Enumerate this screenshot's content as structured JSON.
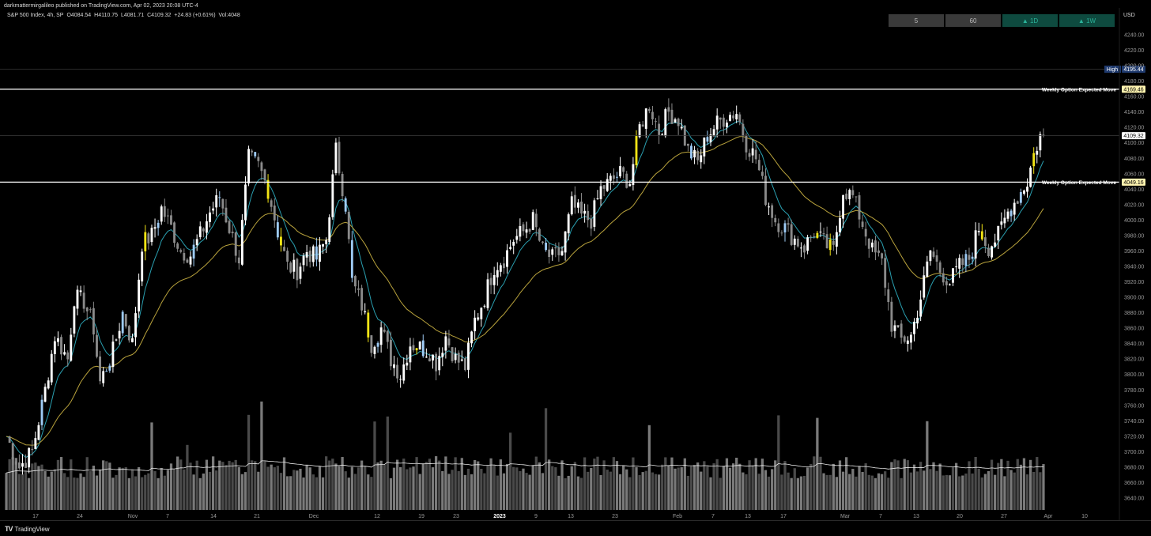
{
  "header": {
    "publish_line": "darkmattermirgalileo published on TradingView.com, Apr 02, 2023 20:08 UTC-4",
    "symbol": "S&P 500 Index, 4h, SP",
    "open": "O4084.54",
    "high": "H4110.75",
    "low": "L4081.71",
    "close": "C4109.32",
    "change": "+24.83 (+0.61%)",
    "volume": "Vol:4048"
  },
  "timeframes": [
    {
      "label": "5",
      "up": false
    },
    {
      "label": "60",
      "up": false
    },
    {
      "label": "▲ 1D",
      "up": true
    },
    {
      "label": "▲ 1W",
      "up": true
    }
  ],
  "axis": {
    "currency": "USD"
  },
  "brand": "TradingView",
  "colors": {
    "background": "#000000",
    "candle_up": "#ffffff",
    "candle_down": "#8a8a8a",
    "candle_accent_blue": "#9ecbf5",
    "candle_accent_yellow": "#f2e415",
    "ema_short": "#2a9fb0",
    "ema_long": "#b8a23c",
    "volume_ma": "#e8e8e8"
  },
  "chart_data": {
    "type": "candlestick",
    "y_axis_ticks": [
      3640,
      3660,
      3680,
      3700,
      3720,
      3740,
      3760,
      3780,
      3800,
      3820,
      3840,
      3860,
      3880,
      3900,
      3920,
      3940,
      3960,
      3980,
      4000,
      4020,
      4040,
      4060,
      4080,
      4100,
      4120,
      4140,
      4160,
      4180,
      4200,
      4220,
      4240
    ],
    "ylim": [
      3630,
      4250
    ],
    "x_tick_labels": [
      "17",
      "24",
      "Nov",
      "7",
      "14",
      "21",
      "Dec",
      "12",
      "19",
      "23",
      "2023",
      "9",
      "13",
      "23",
      "Feb",
      "7",
      "13",
      "17",
      "Mar",
      "7",
      "13",
      "20",
      "27",
      "Apr",
      "10"
    ],
    "horizontal_levels": [
      {
        "name": "High",
        "value": 4195.44,
        "label": "4195.44",
        "line": false
      },
      {
        "name": "Weekly Option Expected Move",
        "value": 4169.46,
        "label": "4169.46",
        "line": true
      },
      {
        "name": "",
        "value": 4109.32,
        "label": "4109.32",
        "line": false
      },
      {
        "name": "Weekly Option Expected Move",
        "value": 4049.16,
        "label": "4049.16",
        "line": true
      }
    ],
    "close_path": [
      [
        0,
        3720
      ],
      [
        4,
        3680
      ],
      [
        8,
        3700
      ],
      [
        12,
        3780
      ],
      [
        15,
        3850
      ],
      [
        19,
        3820
      ],
      [
        21,
        3900
      ],
      [
        24,
        3895
      ],
      [
        27,
        3860
      ],
      [
        29,
        3790
      ],
      [
        33,
        3830
      ],
      [
        36,
        3880
      ],
      [
        39,
        3840
      ],
      [
        42,
        3970
      ],
      [
        45,
        3980
      ],
      [
        48,
        4015
      ],
      [
        51,
        3990
      ],
      [
        54,
        3960
      ],
      [
        57,
        3955
      ],
      [
        60,
        3980
      ],
      [
        63,
        4010
      ],
      [
        66,
        4030
      ],
      [
        69,
        3990
      ],
      [
        72,
        3950
      ],
      [
        75,
        4080
      ],
      [
        78,
        4070
      ],
      [
        81,
        4040
      ],
      [
        84,
        3985
      ],
      [
        87,
        3940
      ],
      [
        90,
        3935
      ],
      [
        93,
        3960
      ],
      [
        96,
        3950
      ],
      [
        99,
        3975
      ],
      [
        102,
        4090
      ],
      [
        105,
        4020
      ],
      [
        107,
        3920
      ],
      [
        110,
        3890
      ],
      [
        113,
        3840
      ],
      [
        116,
        3860
      ],
      [
        119,
        3820
      ],
      [
        122,
        3800
      ],
      [
        125,
        3840
      ],
      [
        128,
        3835
      ],
      [
        131,
        3830
      ],
      [
        133,
        3815
      ],
      [
        136,
        3850
      ],
      [
        139,
        3820
      ],
      [
        142,
        3810
      ],
      [
        145,
        3870
      ],
      [
        148,
        3900
      ],
      [
        151,
        3940
      ],
      [
        154,
        3950
      ],
      [
        157,
        3975
      ],
      [
        160,
        3985
      ],
      [
        163,
        4000
      ],
      [
        166,
        3960
      ],
      [
        169,
        3950
      ],
      [
        172,
        3960
      ],
      [
        175,
        4020
      ],
      [
        178,
        4005
      ],
      [
        181,
        4000
      ],
      [
        184,
        4040
      ],
      [
        187,
        4050
      ],
      [
        190,
        4060
      ],
      [
        193,
        4050
      ],
      [
        196,
        4120
      ],
      [
        199,
        4150
      ],
      [
        202,
        4115
      ],
      [
        205,
        4140
      ],
      [
        208,
        4130
      ],
      [
        211,
        4090
      ],
      [
        214,
        4075
      ],
      [
        217,
        4110
      ],
      [
        220,
        4125
      ],
      [
        223,
        4135
      ],
      [
        226,
        4140
      ],
      [
        229,
        4100
      ],
      [
        232,
        4080
      ],
      [
        235,
        4030
      ],
      [
        238,
        4000
      ],
      [
        241,
        3990
      ],
      [
        244,
        3975
      ],
      [
        247,
        3965
      ],
      [
        250,
        3985
      ],
      [
        253,
        3970
      ],
      [
        256,
        3960
      ],
      [
        259,
        4040
      ],
      [
        262,
        4030
      ],
      [
        265,
        3995
      ],
      [
        268,
        3960
      ],
      [
        271,
        3945
      ],
      [
        274,
        3865
      ],
      [
        277,
        3845
      ],
      [
        280,
        3850
      ],
      [
        283,
        3900
      ],
      [
        286,
        3960
      ],
      [
        289,
        3935
      ],
      [
        292,
        3920
      ],
      [
        295,
        3940
      ],
      [
        298,
        3950
      ],
      [
        301,
        3990
      ],
      [
        304,
        3965
      ],
      [
        307,
        3980
      ],
      [
        310,
        4010
      ],
      [
        313,
        4030
      ],
      [
        316,
        4050
      ],
      [
        318,
        4085
      ],
      [
        320,
        4109
      ]
    ],
    "series": [
      {
        "type": "candlestick"
      },
      {
        "type": "ema"
      },
      {
        "type": "ema"
      },
      {
        "type": "volume"
      }
    ]
  }
}
